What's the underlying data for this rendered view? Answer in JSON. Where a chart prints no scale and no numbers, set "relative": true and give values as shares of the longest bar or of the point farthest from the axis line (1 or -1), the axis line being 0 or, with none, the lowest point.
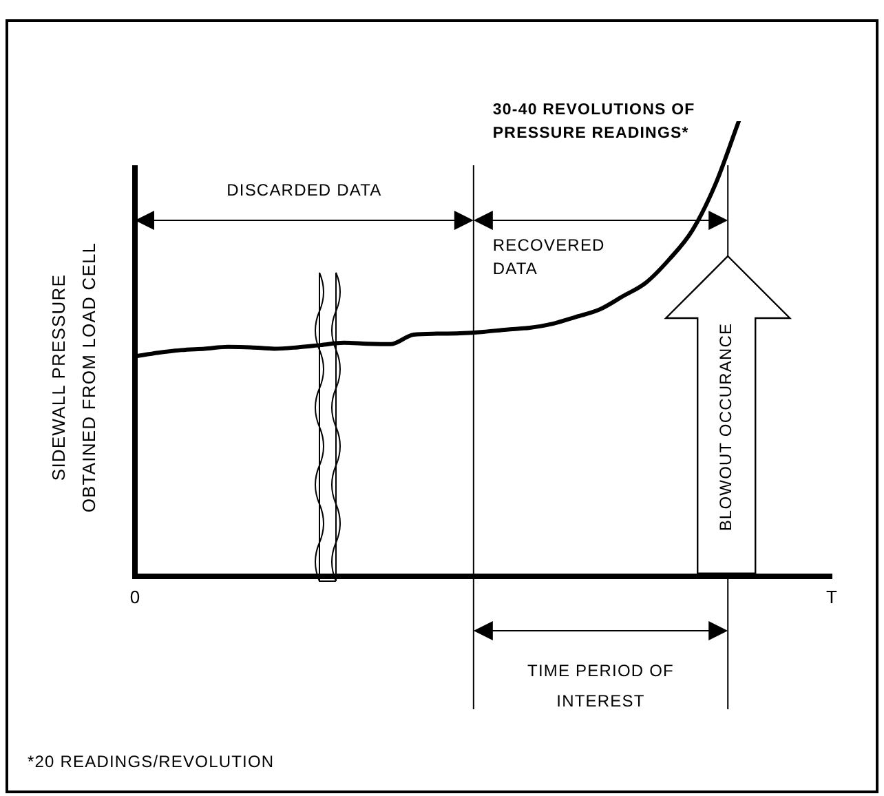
{
  "chart_data": {
    "type": "line",
    "relative": true,
    "ylabel": "SIDEWALL PRESSURE OBTAINED FROM LOAD CELL",
    "categories": [
      "0",
      null,
      null,
      null,
      null,
      null,
      null,
      null,
      null,
      null,
      null,
      null,
      null,
      null,
      null,
      null,
      null,
      null,
      null,
      null,
      null,
      null,
      null,
      null,
      null,
      null,
      null,
      null,
      null,
      null,
      "T"
    ],
    "tick_labels": "x",
    "grid": false,
    "legend": false,
    "series": [
      {
        "color": "#000000",
        "values": [
          0.483,
          0.491,
          0.497,
          0.5,
          0.504,
          0.503,
          0.5,
          0.503,
          0.508,
          0.513,
          0.511,
          0.51,
          0.531,
          0.533,
          0.534,
          0.537,
          0.542,
          0.546,
          0.555,
          0.57,
          0.586,
          0.615,
          0.645,
          0.696,
          0.76,
          0.862,
          1,
          null,
          null,
          null,
          null
        ]
      }
    ],
    "annotations": [
      "DISCARDED DATA",
      "RECOVERED DATA",
      "30-40 REVOLUTIONS OF PRESSURE READINGS*",
      "BLOWOUT OCCURANCE",
      "TIME PERIOD OF INTEREST",
      "*20 READINGS/REVOLUTION"
    ]
  }
}
